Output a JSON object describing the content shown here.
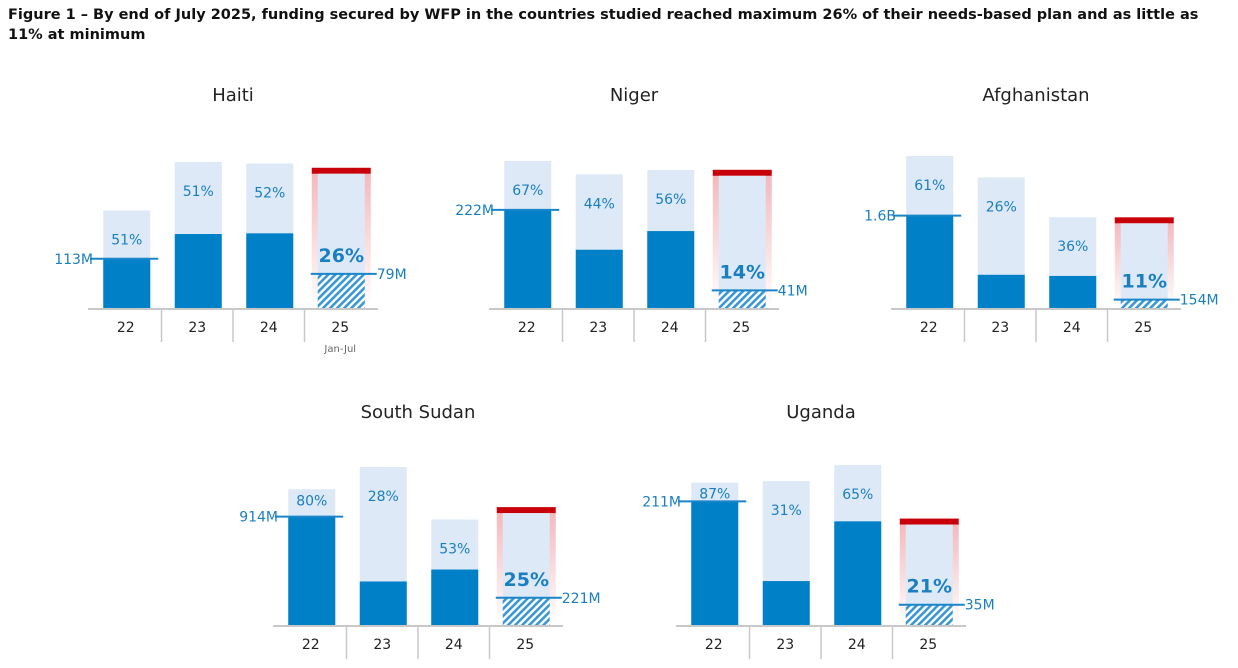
{
  "figure": {
    "title": "Figure 1 – By end of July 2025, funding secured by WFP in the countries studied reached maximum 26% of their needs-based plan and as little as 11% at minimum"
  },
  "colors": {
    "funded": "#0080c6",
    "needs": "#dde9f6",
    "hatch": "#3a97d3",
    "cap": "#c8000a",
    "glow": "#f3b9bd",
    "label": "#1a7fc1",
    "ref_line": "#1a85c8",
    "axis": "#c8c8c8"
  },
  "chart_data": [
    {
      "type": "bar",
      "title": "Haiti",
      "categories": [
        "22",
        "23",
        "24",
        "25"
      ],
      "category_subtitles": [
        "",
        "",
        "",
        "Jan-Jul"
      ],
      "needs_relative": [
        0.67,
        1.0,
        0.99,
        0.92
      ],
      "funded_pct": [
        51,
        51,
        52,
        26
      ],
      "pct_labels": [
        "51%",
        "51%",
        "52%",
        "26%"
      ],
      "annotations": [
        {
          "category": "22",
          "label": "113M",
          "side": "left"
        },
        {
          "category": "25",
          "label": "79M",
          "side": "right"
        }
      ],
      "highlight_category": "25"
    },
    {
      "type": "bar",
      "title": "Niger",
      "categories": [
        "22",
        "23",
        "24",
        "25"
      ],
      "category_subtitles": [
        "",
        "",
        "",
        ""
      ],
      "needs_relative": [
        1.0,
        0.91,
        0.94,
        0.9
      ],
      "funded_pct": [
        67,
        44,
        56,
        14
      ],
      "pct_labels": [
        "67%",
        "44%",
        "56%",
        "14%"
      ],
      "annotations": [
        {
          "category": "22",
          "label": "222M",
          "side": "left"
        },
        {
          "category": "25",
          "label": "41M",
          "side": "right"
        }
      ],
      "highlight_category": "25"
    },
    {
      "type": "bar",
      "title": "Afghanistan",
      "categories": [
        "22",
        "23",
        "24",
        "25"
      ],
      "category_subtitles": [
        "",
        "",
        "",
        ""
      ],
      "needs_relative": [
        1.0,
        0.86,
        0.6,
        0.56
      ],
      "funded_pct": [
        61,
        26,
        36,
        11
      ],
      "pct_labels": [
        "61%",
        "26%",
        "36%",
        "11%"
      ],
      "annotations": [
        {
          "category": "22",
          "label": "1.6B",
          "side": "left"
        },
        {
          "category": "25",
          "label": "154M",
          "side": "right"
        }
      ],
      "highlight_category": "25"
    },
    {
      "type": "bar",
      "title": "South Sudan",
      "categories": [
        "22",
        "23",
        "24",
        "25"
      ],
      "category_subtitles": [
        "",
        "",
        "",
        ""
      ],
      "needs_relative": [
        0.86,
        1.0,
        0.67,
        0.71
      ],
      "funded_pct": [
        80,
        28,
        53,
        25
      ],
      "pct_labels": [
        "80%",
        "28%",
        "53%",
        "25%"
      ],
      "annotations": [
        {
          "category": "22",
          "label": "914M",
          "side": "left"
        },
        {
          "category": "25",
          "label": "221M",
          "side": "right"
        }
      ],
      "highlight_category": "25"
    },
    {
      "type": "bar",
      "title": "Uganda",
      "categories": [
        "22",
        "23",
        "24",
        "25"
      ],
      "category_subtitles": [
        "",
        "",
        "",
        ""
      ],
      "needs_relative": [
        0.89,
        0.9,
        1.0,
        0.63
      ],
      "funded_pct": [
        87,
        31,
        65,
        21
      ],
      "pct_labels": [
        "87%",
        "31%",
        "65%",
        "21%"
      ],
      "annotations": [
        {
          "category": "22",
          "label": "211M",
          "side": "left"
        },
        {
          "category": "25",
          "label": "35M",
          "side": "right"
        }
      ],
      "highlight_category": "25"
    }
  ]
}
